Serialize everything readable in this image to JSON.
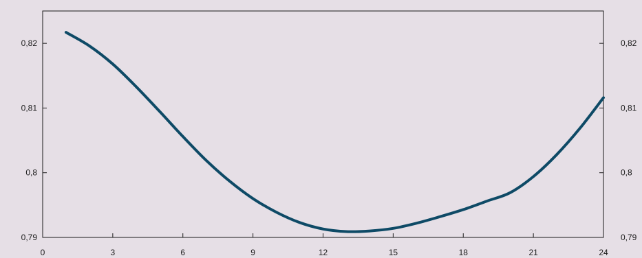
{
  "chart_data": {
    "type": "line",
    "xlim": [
      0,
      24
    ],
    "ylim": [
      0.79,
      0.825
    ],
    "x_ticks": [
      0,
      3,
      6,
      9,
      12,
      15,
      18,
      21,
      24
    ],
    "x_tick_labels": [
      "0",
      "3",
      "6",
      "9",
      "12",
      "15",
      "18",
      "21",
      "24"
    ],
    "y_ticks": [
      0.79,
      0.8,
      0.81,
      0.82
    ],
    "y_tick_labels": [
      "0,79",
      "0,8",
      "0,81",
      "0,82"
    ],
    "right_axis_tick_labels": [
      "0,79",
      "0,8",
      "0,81",
      "0,82"
    ],
    "grid": false,
    "colors": {
      "line": "#0e4a66",
      "background": "#e6dfe6",
      "axis": "#1a1a1a"
    },
    "series": [
      {
        "x": [
          1,
          2,
          3,
          4,
          5,
          6,
          7,
          8,
          9,
          10,
          11,
          12,
          13,
          14,
          15,
          16,
          17,
          18,
          19,
          20,
          21,
          22,
          23,
          24
        ],
        "values": [
          0.8217,
          0.8196,
          0.8168,
          0.8133,
          0.8095,
          0.8056,
          0.8019,
          0.7987,
          0.796,
          0.7939,
          0.7923,
          0.7913,
          0.7909,
          0.791,
          0.7914,
          0.7922,
          0.7932,
          0.7943,
          0.7956,
          0.7969,
          0.7994,
          0.8028,
          0.8069,
          0.8116
        ]
      }
    ]
  }
}
